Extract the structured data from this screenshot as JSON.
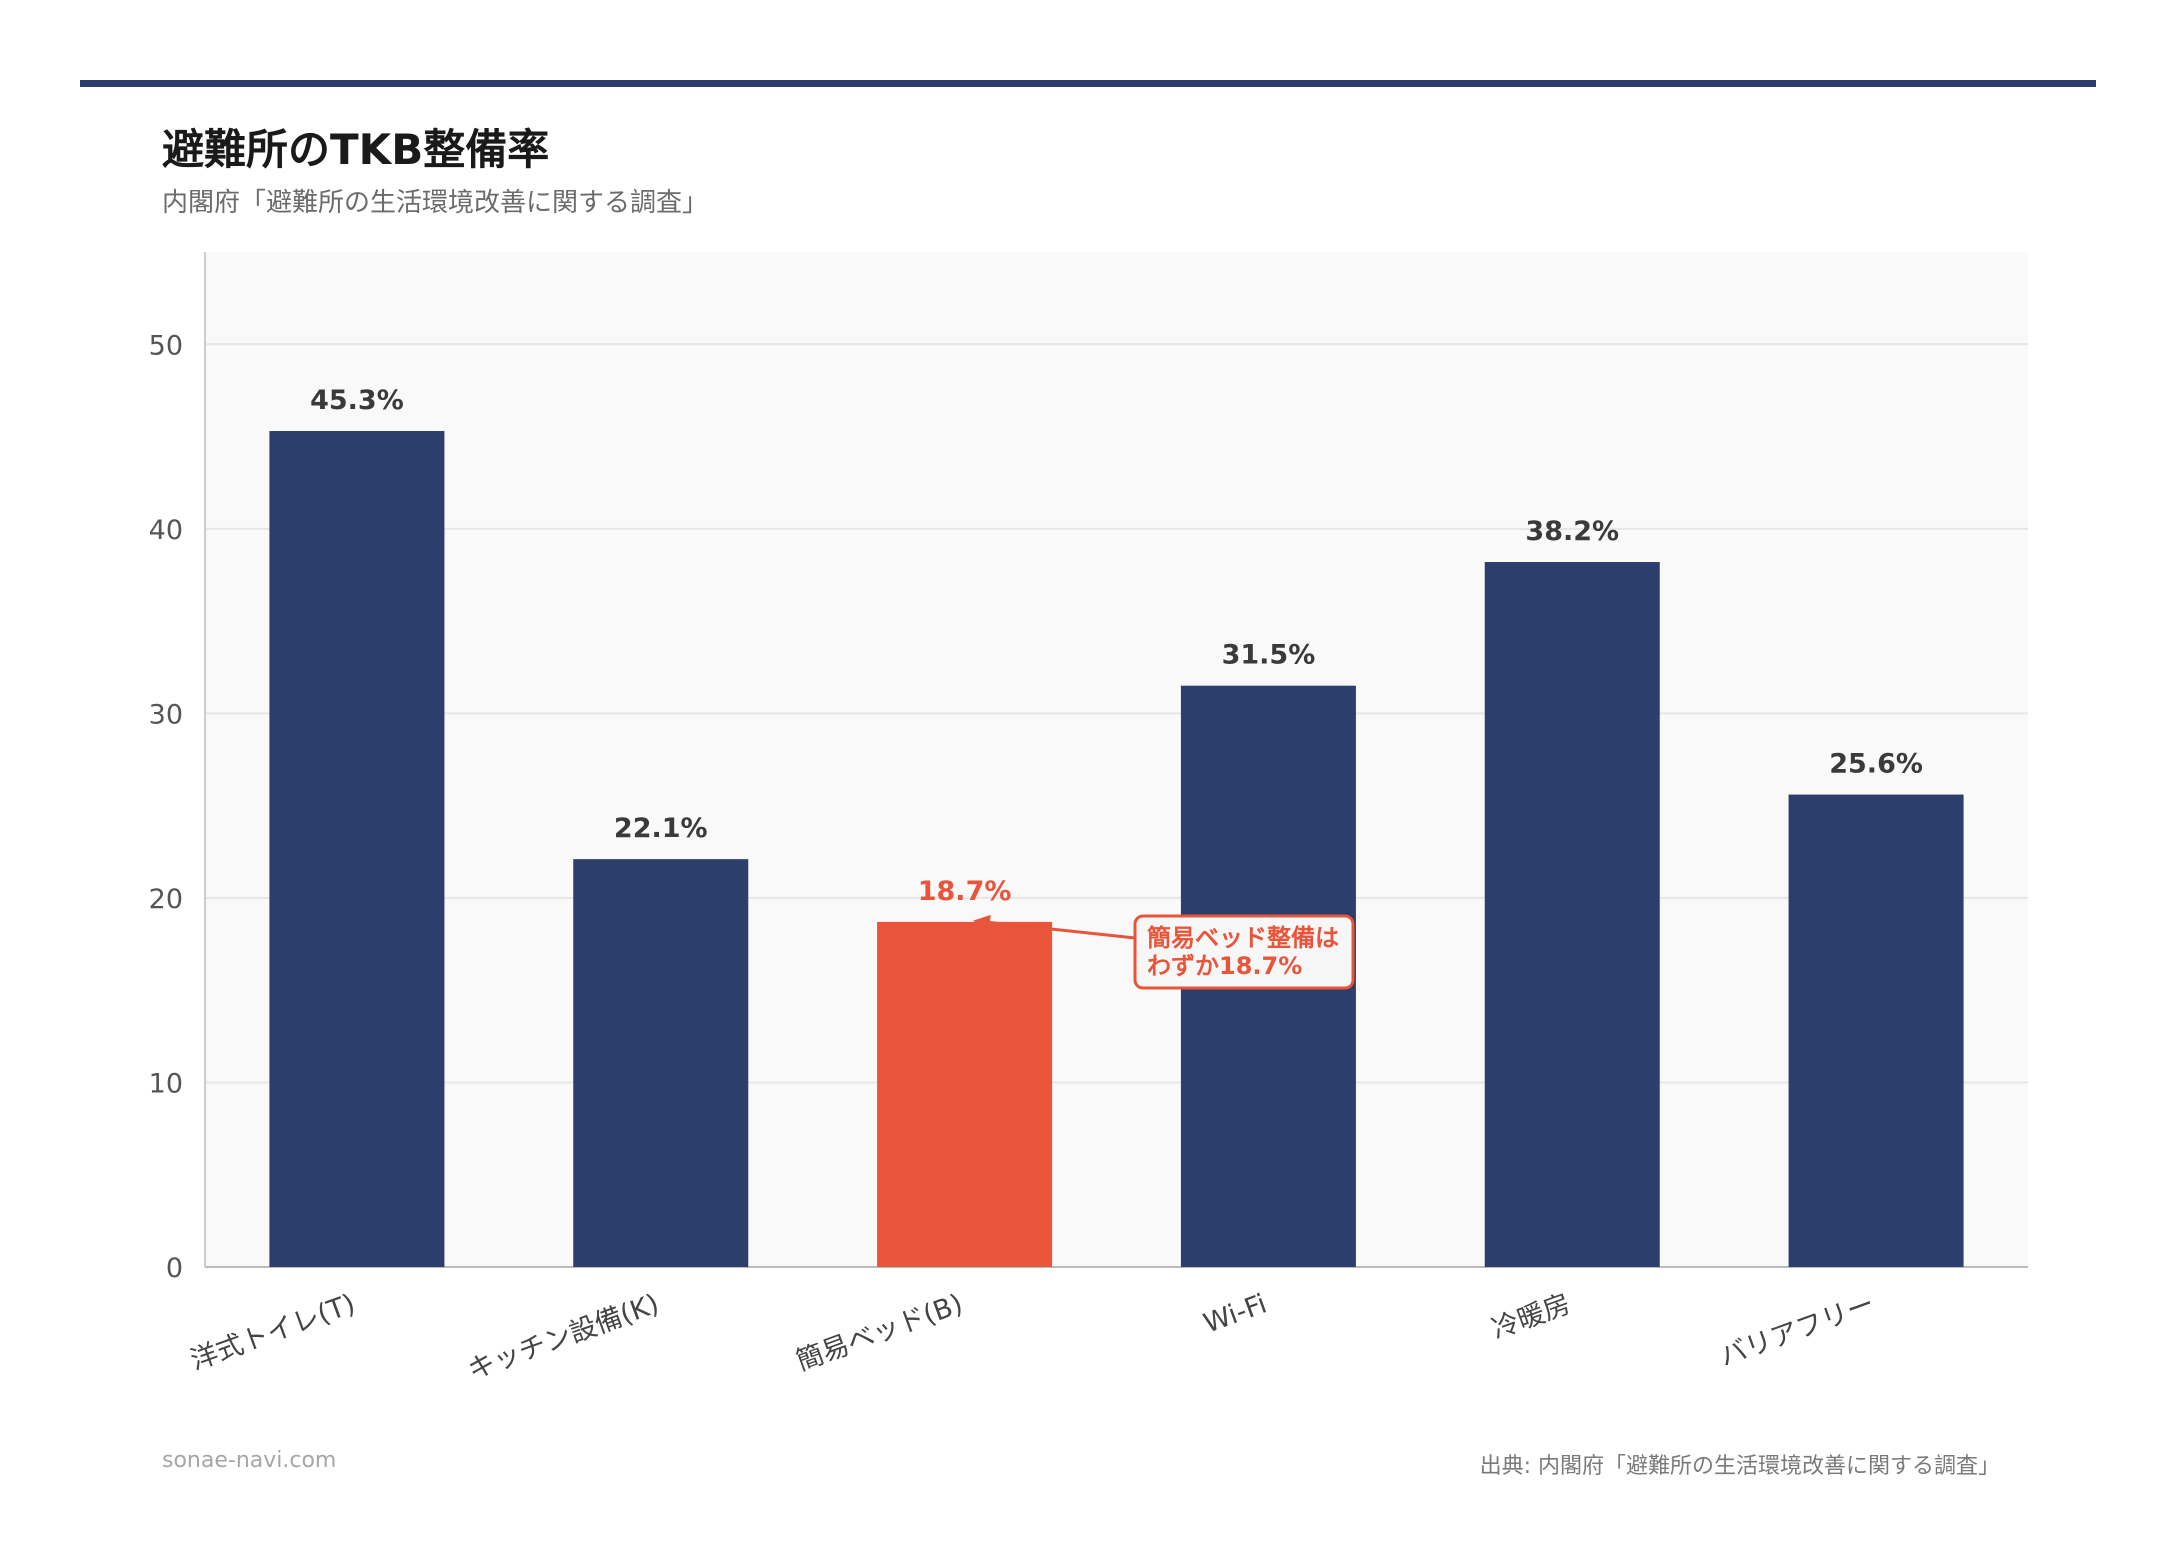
{
  "header": {
    "title": "避難所のTKB整備率",
    "subtitle": "内閣府「避難所の生活環境改善に関する調査」"
  },
  "footer": {
    "site": "sonae-navi.com",
    "source": "出典: 内閣府「避難所の生活環境改善に関する調査」"
  },
  "colors": {
    "bar": "#2c3e6b",
    "highlight": "#e8553a",
    "plot_bg": "#f9f9f9",
    "grid": "#e6e6e6"
  },
  "chart_data": {
    "type": "bar",
    "categories": [
      "洋式トイレ(T)",
      "キッチン設備(K)",
      "簡易ベッド(B)",
      "Wi-Fi",
      "冷暖房",
      "バリアフリー"
    ],
    "values": [
      45.3,
      22.1,
      18.7,
      31.5,
      38.2,
      25.6
    ],
    "value_labels": [
      "45.3%",
      "22.1%",
      "18.7%",
      "31.5%",
      "38.2%",
      "25.6%"
    ],
    "highlight_index": 2,
    "ylim": [
      0,
      55
    ],
    "yticks": [
      0,
      10,
      20,
      30,
      40,
      50
    ],
    "grid": true,
    "xlabel": "",
    "ylabel": "",
    "annotation": {
      "index": 2,
      "lines": [
        "簡易ベッド整備は",
        "わずか18.7%"
      ]
    }
  }
}
